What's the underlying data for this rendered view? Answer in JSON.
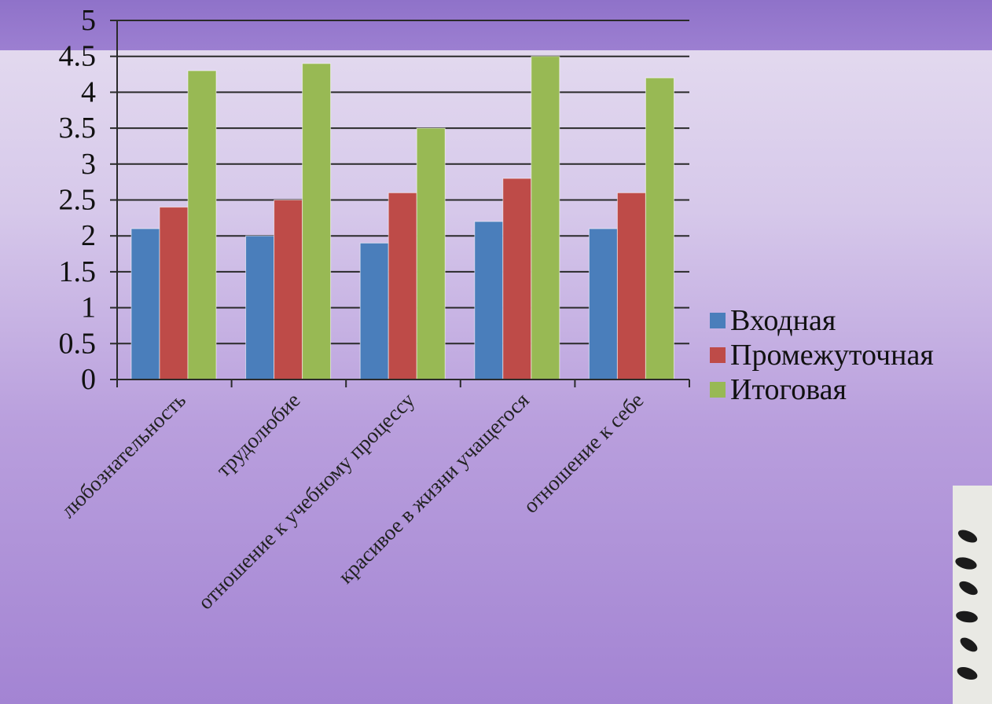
{
  "chart_data": {
    "type": "bar",
    "categories": [
      "любознательность",
      "трудолюбие",
      "отношение к учебному процессу",
      "красивое в жизни учащегося",
      "отношение к себе"
    ],
    "series": [
      {
        "name": "Входная",
        "color": "#4a7ebb",
        "values": [
          2.1,
          2.0,
          1.9,
          2.2,
          2.1
        ]
      },
      {
        "name": "Промежуточная",
        "color": "#be4b48",
        "values": [
          2.4,
          2.5,
          2.6,
          2.8,
          2.6
        ]
      },
      {
        "name": "Итоговая",
        "color": "#98b954",
        "values": [
          4.3,
          4.4,
          3.5,
          4.5,
          4.2
        ]
      }
    ],
    "yticks": [
      "0",
      "0.5",
      "1",
      "1.5",
      "2",
      "2.5",
      "3",
      "3.5",
      "4",
      "4.5",
      "5"
    ],
    "ylim": [
      0,
      5
    ],
    "grid": true,
    "legend": "right"
  }
}
